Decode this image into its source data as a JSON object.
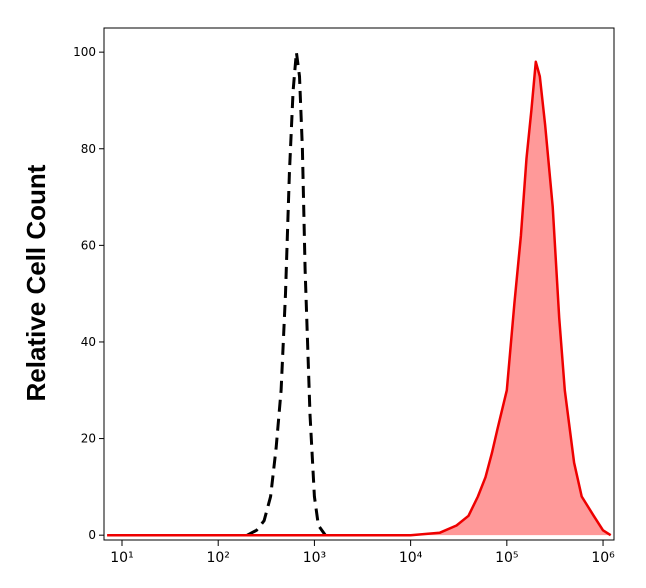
{
  "chart_data": {
    "type": "line",
    "ylabel": "Relative Cell Count",
    "xscale": "log",
    "xlim": [
      6.5,
      1300000
    ],
    "xticks": [
      {
        "value": 10,
        "label": "10¹"
      },
      {
        "value": 100,
        "label": "10²"
      },
      {
        "value": 1000,
        "label": "10³"
      },
      {
        "value": 10000,
        "label": "10⁴"
      },
      {
        "value": 100000,
        "label": "10⁵"
      },
      {
        "value": 1000000,
        "label": "10⁶"
      }
    ],
    "ylim": [
      -1,
      105
    ],
    "yticks": [
      0,
      20,
      40,
      60,
      80,
      100
    ],
    "series": [
      {
        "color": "#000000",
        "dashed": true,
        "x": [
          200,
          250,
          300,
          350,
          400,
          450,
          500,
          550,
          600,
          650,
          700,
          750,
          800,
          900,
          1000,
          1100,
          1300
        ],
        "values": [
          0,
          1,
          3,
          8,
          18,
          30,
          50,
          75,
          92,
          100,
          95,
          80,
          55,
          25,
          8,
          2,
          0
        ]
      },
      {
        "color": "#ee0000",
        "fill": "#ff9999",
        "x": [
          7,
          10000,
          20000,
          30000,
          40000,
          50000,
          60000,
          70000,
          80000,
          100000,
          120000,
          140000,
          160000,
          180000,
          200000,
          220000,
          250000,
          300000,
          350000,
          400000,
          500000,
          600000,
          800000,
          1000000,
          1200000
        ],
        "values": [
          0,
          0,
          0.5,
          2,
          4,
          8,
          12,
          17,
          22,
          30,
          48,
          62,
          78,
          88,
          98,
          95,
          85,
          68,
          45,
          30,
          15,
          8,
          4,
          1,
          0
        ]
      }
    ]
  }
}
